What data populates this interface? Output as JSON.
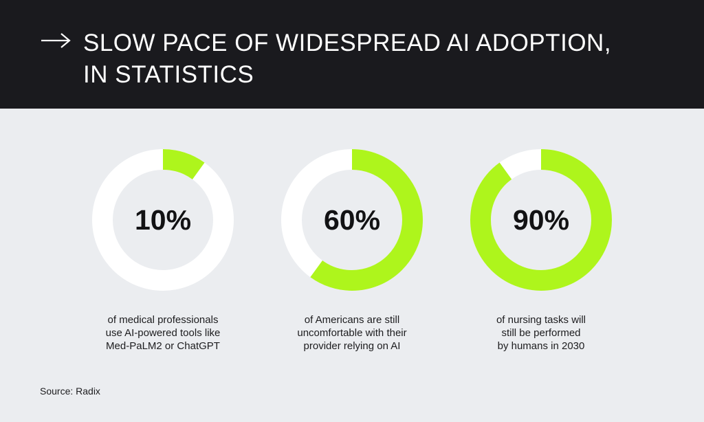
{
  "header": {
    "arrow_icon": "arrow-right-icon",
    "title_line1": "SLOW PACE OF WIDESPREAD AI ADOPTION,",
    "title_line2": "IN STATISTICS"
  },
  "colors": {
    "header_bg": "#1a1a1e",
    "page_bg": "#ebedf0",
    "accent": "#aef51c",
    "track": "#ffffff"
  },
  "chart_data": [
    {
      "type": "pie",
      "variant": "donut",
      "value": 10,
      "label": "10%",
      "caption": "of medical professionals\nuse AI-powered tools like\nMed-PaLM2 or ChatGPT"
    },
    {
      "type": "pie",
      "variant": "donut",
      "value": 60,
      "label": "60%",
      "caption": "of Americans are still\nuncomfortable with their\nprovider relying on AI"
    },
    {
      "type": "pie",
      "variant": "donut",
      "value": 90,
      "label": "90%",
      "caption": "of nursing tasks will\nstill be performed\nby humans in 2030"
    }
  ],
  "source": "Source: Radix"
}
